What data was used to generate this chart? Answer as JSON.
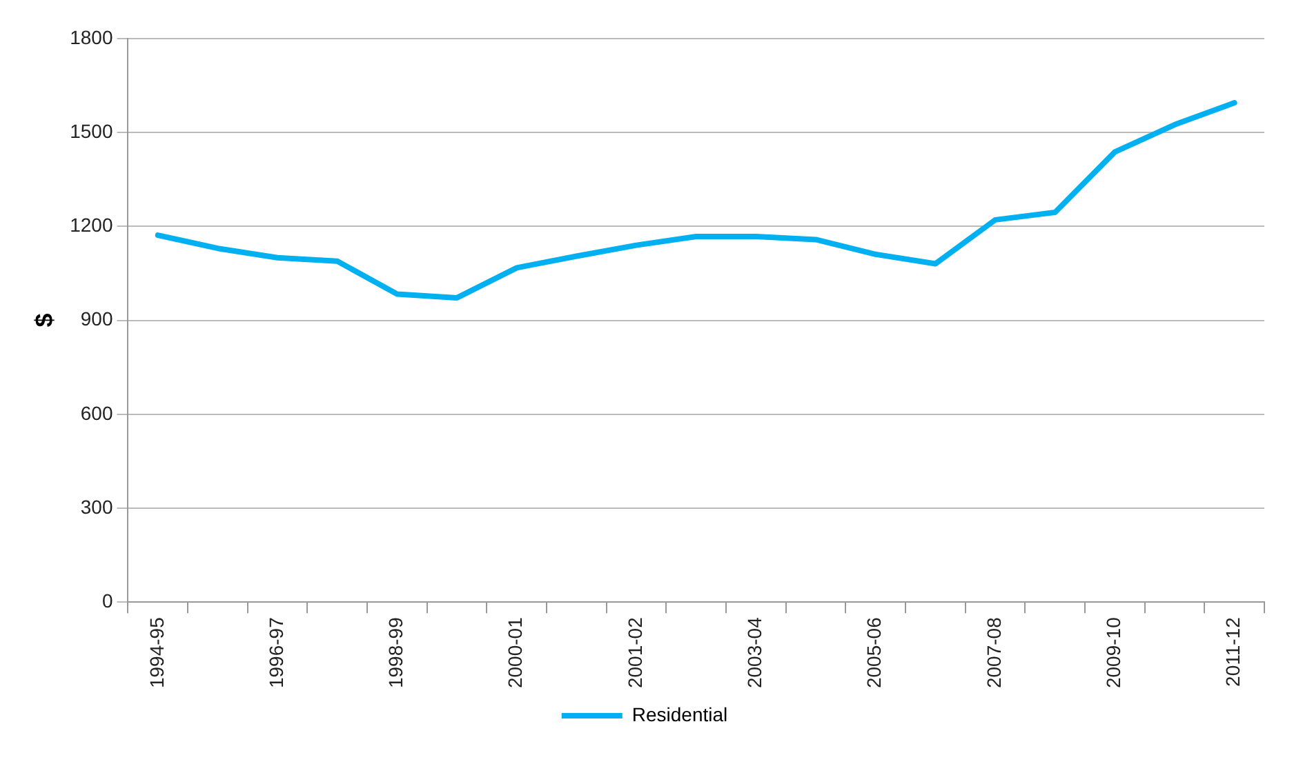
{
  "chart_data": {
    "type": "line",
    "ylabel": "$",
    "categories": [
      "1994-95",
      null,
      "1996-97",
      null,
      "1998-99",
      null,
      "2000-01",
      null,
      "2001-02",
      null,
      "2003-04",
      null,
      "2005-06",
      null,
      "2007-08",
      null,
      "2009-10",
      null,
      "2011-12"
    ],
    "series": [
      {
        "name": "Residential",
        "color": "#00b0f0",
        "values": [
          1172,
          1130,
          1100,
          1089,
          984,
          972,
          1068,
          1105,
          1140,
          1168,
          1168,
          1158,
          1111,
          1081,
          1221,
          1245,
          1438,
          1525,
          1595
        ]
      }
    ],
    "ylim": [
      0,
      1800
    ],
    "yticks": [
      0,
      300,
      600,
      900,
      1200,
      1500,
      1800
    ],
    "grid": "y",
    "legend": "bottom",
    "marker": "none",
    "line_style": "solid"
  }
}
